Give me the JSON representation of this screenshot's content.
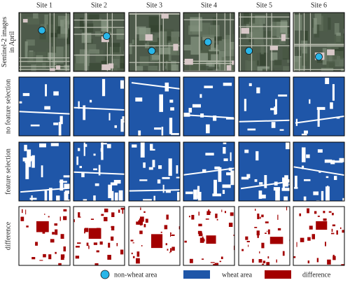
{
  "columns": [
    "Site 1",
    "Site 2",
    "Site 3",
    "Site 4",
    "Site 5",
    "Site 6"
  ],
  "rows": [
    [
      "Sentinel-2 images",
      "in April"
    ],
    [
      "no feature selection"
    ],
    [
      "feature selection"
    ],
    [
      "difference"
    ]
  ],
  "legend": [
    "non-wheat area",
    "wheat area",
    "difference"
  ]
}
